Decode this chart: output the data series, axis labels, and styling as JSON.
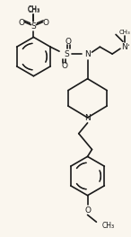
{
  "bg_color": "#faf6ee",
  "line_color": "#1a1a1a",
  "lw": 1.2,
  "figsize": [
    1.46,
    2.64
  ],
  "dpi": 100,
  "xlim": [
    0,
    146
  ],
  "ylim": [
    0,
    264
  ]
}
